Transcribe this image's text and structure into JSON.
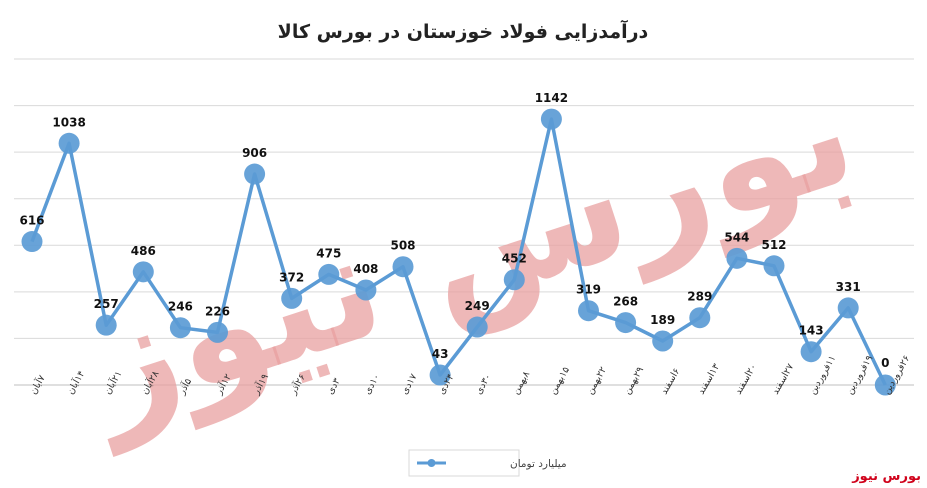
{
  "chart_data": {
    "type": "line",
    "title": "درآمدزایی فولاد خوزستان در بورس کالا",
    "categories": [
      "۷آبان",
      "۱۴آبان",
      "۲۱آبان",
      "۲۸آبان",
      "۵آذر",
      "۱۲آذر",
      "۱۹آذر",
      "۲۶آذر",
      "۳دی",
      "۱۰دی",
      "۱۷دی",
      "۲۴دی",
      "۳۰دی",
      "۸بهمن",
      "۱۵بهمن",
      "۲۲بهمن",
      "۲۹بهمن",
      "۶اسفند",
      "۱۳اسفند",
      "۲۰اسفند",
      "۲۷اسفند",
      "۱۱فروردین",
      "۱۹فروردین",
      "۲۶فروردین"
    ],
    "series": [
      {
        "name": "میلیارد تومان",
        "values": [
          616,
          1038,
          257,
          486,
          246,
          226,
          906,
          372,
          475,
          408,
          508,
          43,
          249,
          452,
          1142,
          319,
          268,
          189,
          289,
          544,
          512,
          143,
          331,
          0
        ]
      }
    ],
    "ylim": [
      0,
      1400
    ],
    "grid": true,
    "legend": "bottom",
    "colors": {
      "line": "#5b9bd5",
      "marker": "#5b9bd5",
      "grid": "#d9d9d9",
      "watermark": "#e8a0a0"
    },
    "watermark": "بورس نیوز"
  },
  "brand": "بورس نیوز"
}
